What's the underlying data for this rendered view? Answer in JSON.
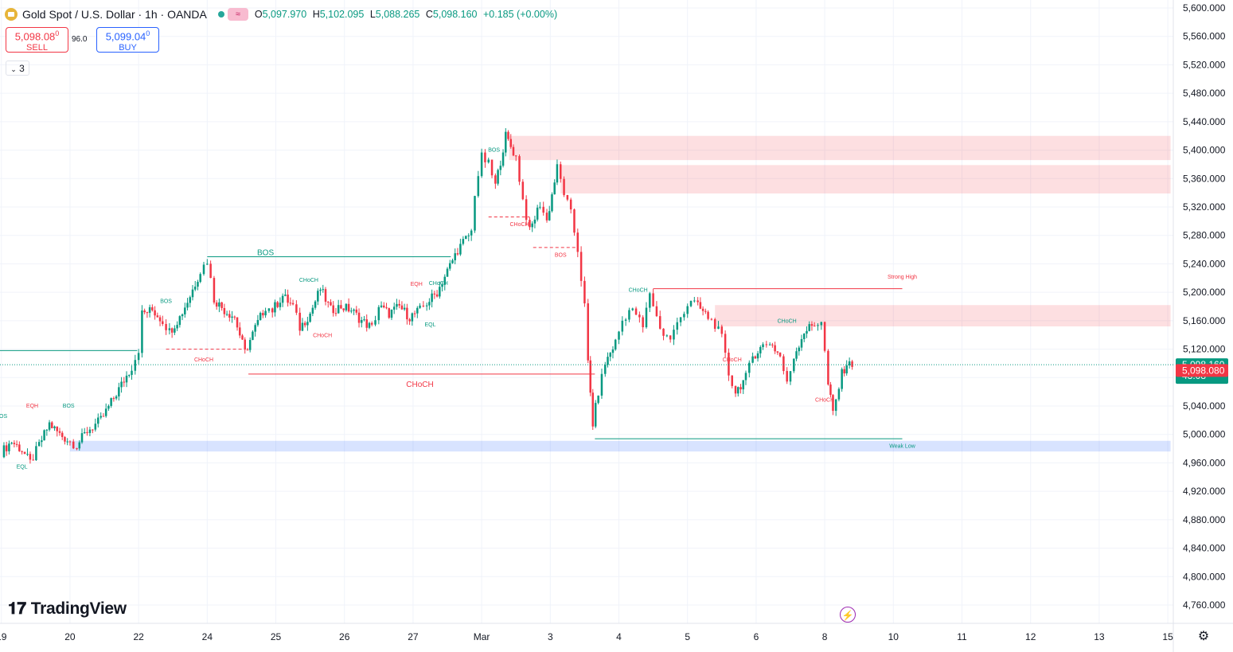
{
  "header": {
    "symbol": "Gold Spot / U.S. Dollar · 1h · OANDA",
    "open_label": "O",
    "open": "5,097.970",
    "high_label": "H",
    "high": "5,102.095",
    "low_label": "L",
    "low": "5,088.265",
    "close_label": "C",
    "close": "5,098.160",
    "change": "+0.185 (+0.00%)"
  },
  "trade": {
    "sell_price": "5,098.08",
    "sell_sup": "0",
    "sell_label": "SELL",
    "spread": "96.0",
    "buy_price": "5,099.04",
    "buy_sup": "0",
    "buy_label": "BUY",
    "lots": "3"
  },
  "price_tags": {
    "last_price": "5,098.160",
    "countdown": "43:08",
    "bid_price": "5,098.080"
  },
  "brand": "TradingView",
  "colors": {
    "up": "#089981",
    "down": "#f23645",
    "supply_zone": "#f8bbd0",
    "demand_zone": "#bbdefb",
    "grid": "#f0f3fa"
  },
  "chart_data": {
    "type": "candlestick",
    "ylim": [
      4740,
      5610
    ],
    "yticks": [
      "5,600.000",
      "5,560.000",
      "5,520.000",
      "5,480.000",
      "5,440.000",
      "5,400.000",
      "5,360.000",
      "5,320.000",
      "5,280.000",
      "5,240.000",
      "5,200.000",
      "5,160.000",
      "5,120.000",
      "5,080.000",
      "5,040.000",
      "5,000.000",
      "4,960.000",
      "4,920.000",
      "4,880.000",
      "4,840.000",
      "4,800.000",
      "4,760.000"
    ],
    "xticks": [
      "19",
      "20",
      "22",
      "24",
      "25",
      "26",
      "27",
      "Mar",
      "3",
      "4",
      "5",
      "6",
      "8",
      "10",
      "11",
      "12",
      "13",
      "15"
    ],
    "xtick_days": [
      0,
      1,
      2,
      3,
      4,
      5,
      6,
      7,
      8,
      9,
      10,
      11,
      12,
      13,
      14,
      15,
      16,
      17
    ],
    "x_range": [
      -0.02,
      17.08
    ],
    "close_path": [
      [
        0.0,
        4975
      ],
      [
        0.15,
        4990
      ],
      [
        0.3,
        4978
      ],
      [
        0.42,
        4960
      ],
      [
        0.55,
        4985
      ],
      [
        0.7,
        5015
      ],
      [
        0.85,
        5000
      ],
      [
        1.0,
        4990
      ],
      [
        1.1,
        4985
      ],
      [
        1.25,
        5005
      ],
      [
        1.45,
        5020
      ],
      [
        1.6,
        5045
      ],
      [
        1.75,
        5070
      ],
      [
        1.9,
        5095
      ],
      [
        2.0,
        5120
      ],
      [
        2.05,
        5170
      ],
      [
        2.2,
        5175
      ],
      [
        2.35,
        5160
      ],
      [
        2.45,
        5145
      ],
      [
        2.6,
        5165
      ],
      [
        2.75,
        5195
      ],
      [
        2.9,
        5230
      ],
      [
        3.0,
        5245
      ],
      [
        3.1,
        5190
      ],
      [
        3.25,
        5175
      ],
      [
        3.4,
        5165
      ],
      [
        3.55,
        5115
      ],
      [
        3.7,
        5150
      ],
      [
        3.85,
        5180
      ],
      [
        3.95,
        5175
      ],
      [
        4.1,
        5195
      ],
      [
        4.25,
        5180
      ],
      [
        4.35,
        5150
      ],
      [
        4.5,
        5170
      ],
      [
        4.65,
        5205
      ],
      [
        4.8,
        5175
      ],
      [
        4.95,
        5180
      ],
      [
        5.1,
        5175
      ],
      [
        5.25,
        5160
      ],
      [
        5.4,
        5150
      ],
      [
        5.5,
        5180
      ],
      [
        5.65,
        5170
      ],
      [
        5.8,
        5180
      ],
      [
        5.95,
        5165
      ],
      [
        6.1,
        5175
      ],
      [
        6.2,
        5185
      ],
      [
        6.35,
        5200
      ],
      [
        6.5,
        5230
      ],
      [
        6.65,
        5260
      ],
      [
        6.85,
        5285
      ],
      [
        6.9,
        5340
      ],
      [
        7.0,
        5390
      ],
      [
        7.1,
        5380
      ],
      [
        7.2,
        5350
      ],
      [
        7.35,
        5420
      ],
      [
        7.5,
        5390
      ],
      [
        7.6,
        5330
      ],
      [
        7.7,
        5285
      ],
      [
        7.85,
        5325
      ],
      [
        7.95,
        5300
      ],
      [
        8.1,
        5375
      ],
      [
        8.2,
        5340
      ],
      [
        8.3,
        5310
      ],
      [
        8.4,
        5260
      ],
      [
        8.5,
        5180
      ],
      [
        8.55,
        5100
      ],
      [
        8.62,
        5015
      ],
      [
        8.7,
        5060
      ],
      [
        8.8,
        5100
      ],
      [
        8.95,
        5130
      ],
      [
        9.05,
        5160
      ],
      [
        9.15,
        5175
      ],
      [
        9.25,
        5170
      ],
      [
        9.35,
        5150
      ],
      [
        9.45,
        5200
      ],
      [
        9.55,
        5165
      ],
      [
        9.65,
        5140
      ],
      [
        9.75,
        5135
      ],
      [
        9.85,
        5155
      ],
      [
        9.95,
        5175
      ],
      [
        10.05,
        5190
      ],
      [
        10.15,
        5180
      ],
      [
        10.3,
        5165
      ],
      [
        10.4,
        5155
      ],
      [
        10.5,
        5135
      ],
      [
        10.6,
        5085
      ],
      [
        10.7,
        5060
      ],
      [
        10.85,
        5080
      ],
      [
        10.95,
        5110
      ],
      [
        11.1,
        5125
      ],
      [
        11.2,
        5130
      ],
      [
        11.35,
        5110
      ],
      [
        11.45,
        5070
      ],
      [
        11.55,
        5110
      ],
      [
        11.7,
        5145
      ],
      [
        11.85,
        5155
      ],
      [
        11.95,
        5160
      ],
      [
        12.05,
        5070
      ],
      [
        12.12,
        5030
      ],
      [
        12.25,
        5085
      ],
      [
        12.32,
        5100
      ],
      [
        12.4,
        5095
      ]
    ],
    "annotations": [
      {
        "text": "BOS",
        "day": 3.85,
        "price": 5252,
        "color": "#089981",
        "size": 10
      },
      {
        "text": "CHoCH",
        "day": 6.1,
        "price": 5067,
        "color": "#f23645",
        "size": 10
      },
      {
        "text": "BOS",
        "day": 0.0,
        "price": 5023,
        "color": "#089981",
        "size": 7
      },
      {
        "text": "EQH",
        "day": 0.45,
        "price": 5038,
        "color": "#f23645",
        "size": 7
      },
      {
        "text": "BOS",
        "day": 0.98,
        "price": 5038,
        "color": "#089981",
        "size": 7
      },
      {
        "text": "EQL",
        "day": 0.3,
        "price": 4952,
        "color": "#089981",
        "size": 7
      },
      {
        "text": "BOS",
        "day": 2.4,
        "price": 5185,
        "color": "#089981",
        "size": 7
      },
      {
        "text": "CHoCH",
        "day": 2.95,
        "price": 5103,
        "color": "#f23645",
        "size": 7
      },
      {
        "text": "CHoCH",
        "day": 4.48,
        "price": 5215,
        "color": "#089981",
        "size": 7
      },
      {
        "text": "CHoCH",
        "day": 4.68,
        "price": 5137,
        "color": "#f23645",
        "size": 7
      },
      {
        "text": "EQH",
        "day": 6.05,
        "price": 5209,
        "color": "#f23645",
        "size": 7
      },
      {
        "text": "CHoCH",
        "day": 6.37,
        "price": 5210,
        "color": "#089981",
        "size": 7
      },
      {
        "text": "EQL",
        "day": 6.25,
        "price": 5152,
        "color": "#089981",
        "size": 7
      },
      {
        "text": "BOS",
        "day": 7.18,
        "price": 5398,
        "color": "#089981",
        "size": 7
      },
      {
        "text": "CHoCH",
        "day": 7.55,
        "price": 5293,
        "color": "#f23645",
        "size": 7
      },
      {
        "text": "BOS",
        "day": 8.15,
        "price": 5250,
        "color": "#f23645",
        "size": 7
      },
      {
        "text": "CHoCH",
        "day": 9.28,
        "price": 5201,
        "color": "#089981",
        "size": 7
      },
      {
        "text": "Strong High",
        "day": 13.13,
        "price": 5219,
        "color": "#f23645",
        "size": 7
      },
      {
        "text": "CHoCH",
        "day": 10.65,
        "price": 5103,
        "color": "#f23645",
        "size": 7
      },
      {
        "text": "CHoCH",
        "day": 11.45,
        "price": 5157,
        "color": "#089981",
        "size": 7
      },
      {
        "text": "CHoCH",
        "day": 12.0,
        "price": 5046,
        "color": "#f23645",
        "size": 7
      },
      {
        "text": "Weak Low",
        "day": 13.13,
        "price": 4981,
        "color": "#089981",
        "size": 7
      }
    ],
    "zones": [
      {
        "from_day": 7.4,
        "to_day": 17.04,
        "top": 5420,
        "bottom": 5386,
        "type": "supply"
      },
      {
        "from_day": 8.15,
        "to_day": 17.04,
        "top": 5379,
        "bottom": 5339,
        "type": "supply"
      },
      {
        "from_day": 10.4,
        "to_day": 17.04,
        "top": 5182,
        "bottom": 5152,
        "type": "supply"
      },
      {
        "from_day": 1.0,
        "to_day": 17.04,
        "top": 4991,
        "bottom": 4976,
        "type": "demand"
      }
    ],
    "structure_lines": [
      {
        "from_day": -0.02,
        "to_day": 1.98,
        "price": 5118,
        "color": "#089981",
        "dash": false
      },
      {
        "from_day": 3.0,
        "to_day": 6.55,
        "price": 5250,
        "color": "#089981",
        "dash": false
      },
      {
        "from_day": 3.6,
        "to_day": 8.65,
        "price": 5085,
        "color": "#f23645",
        "dash": false
      },
      {
        "from_day": 8.65,
        "to_day": 13.13,
        "price": 4994,
        "color": "#089981",
        "dash": false
      },
      {
        "from_day": 9.5,
        "to_day": 13.13,
        "price": 5205,
        "color": "#f23645",
        "dash": false
      },
      {
        "from_day": 2.4,
        "to_day": 3.55,
        "price": 5120,
        "color": "#f23645",
        "dash": true
      },
      {
        "from_day": 7.1,
        "to_day": 7.7,
        "price": 5306,
        "color": "#f23645",
        "dash": true
      },
      {
        "from_day": 7.75,
        "to_day": 8.4,
        "price": 5263,
        "color": "#f23645",
        "dash": true
      }
    ],
    "current_price": 5098.16
  }
}
